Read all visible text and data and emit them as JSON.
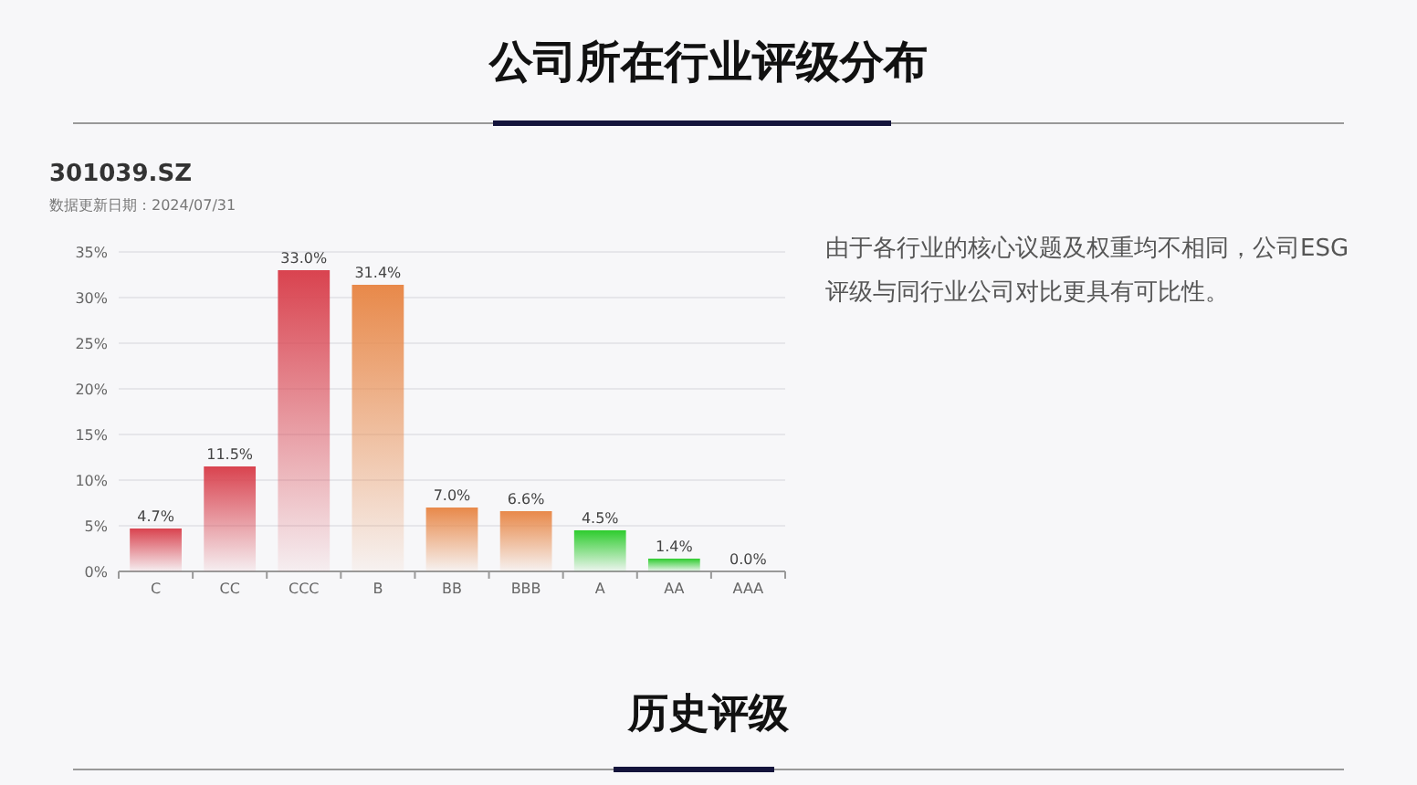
{
  "chart_data": {
    "type": "bar",
    "title": "公司所在行业评级分布",
    "subtitle": "301039.SZ",
    "categories": [
      "C",
      "CC",
      "CCC",
      "B",
      "BB",
      "BBB",
      "A",
      "AA",
      "AAA"
    ],
    "values": [
      4.7,
      11.5,
      33.0,
      31.4,
      7.0,
      6.6,
      4.5,
      1.4,
      0.0
    ],
    "colors": [
      "#d9434f",
      "#d9434f",
      "#d9434f",
      "#e8894a",
      "#e8894a",
      "#e8894a",
      "#2ecc2e",
      "#2ecc2e",
      "#2ecc2e"
    ],
    "value_labels": [
      "4.7%",
      "11.5%",
      "33.0%",
      "31.4%",
      "7.0%",
      "6.6%",
      "4.5%",
      "1.4%",
      "0.0%"
    ],
    "ylim": [
      0,
      35
    ],
    "yticks": [
      {
        "value": 0,
        "label": "0%"
      },
      {
        "value": 5,
        "label": "5%"
      },
      {
        "value": 10,
        "label": "10%"
      },
      {
        "value": 15,
        "label": "15%"
      },
      {
        "value": 20,
        "label": "20%"
      },
      {
        "value": 25,
        "label": "25%"
      },
      {
        "value": 30,
        "label": "30%"
      },
      {
        "value": 35,
        "label": "35%"
      }
    ],
    "grid": "y",
    "annotations": [
      "数据更新日期：2024/07/31",
      "由于各行业的核心议题及权重均不相同，公司ESG评级与同行业公司对比更具有可比性。",
      "历史评级"
    ]
  }
}
